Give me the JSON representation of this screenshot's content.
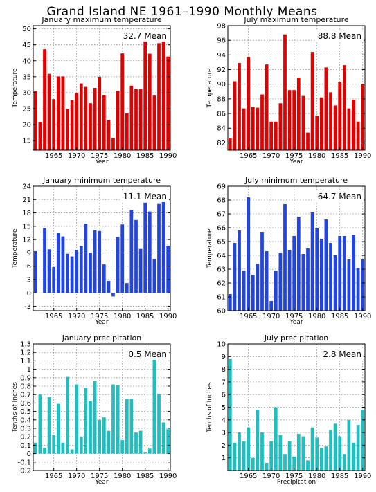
{
  "title": "Grand Island NE  1961–1990 Monthly Means",
  "chart_data": [
    {
      "type": "bar",
      "title": "January maximum temperature",
      "xlabel": "Year",
      "ylabel": "Temperature",
      "mean_label": "32.7 Mean",
      "color": "#e00000",
      "xlim": [
        1960.5,
        1990.5
      ],
      "ylim": [
        12,
        51
      ],
      "yticks": [
        15,
        20,
        25,
        30,
        35,
        40,
        45,
        50
      ],
      "xticks": [
        1965,
        1970,
        1975,
        1980,
        1985,
        1990
      ],
      "grid": true,
      "categories": [
        1961,
        1962,
        1963,
        1964,
        1965,
        1966,
        1967,
        1968,
        1969,
        1970,
        1971,
        1972,
        1973,
        1974,
        1975,
        1976,
        1977,
        1978,
        1979,
        1980,
        1981,
        1982,
        1983,
        1984,
        1985,
        1986,
        1987,
        1988,
        1989,
        1990
      ],
      "values": [
        30.5,
        20.8,
        43.6,
        35.9,
        28.0,
        35.1,
        35.1,
        25.0,
        27.7,
        29.9,
        32.9,
        31.8,
        26.7,
        31.5,
        35.0,
        29.2,
        21.5,
        15.8,
        30.6,
        42.3,
        23.5,
        32.2,
        31.1,
        31.2,
        47.0,
        42.2,
        29.1,
        45.5,
        46.6,
        41.3
      ]
    },
    {
      "type": "bar",
      "title": "July maximum temperature",
      "xlabel": "Year",
      "ylabel": "Temperature",
      "mean_label": "88.8 Mean",
      "color": "#e00000",
      "xlim": [
        1960.5,
        1990.5
      ],
      "ylim": [
        81,
        98
      ],
      "yticks": [
        82,
        84,
        86,
        88,
        90,
        92,
        94,
        96,
        98
      ],
      "xticks": [
        1965,
        1970,
        1975,
        1980,
        1985,
        1990
      ],
      "grid": true,
      "categories": [
        1961,
        1962,
        1963,
        1964,
        1965,
        1966,
        1967,
        1968,
        1969,
        1970,
        1971,
        1972,
        1973,
        1974,
        1975,
        1976,
        1977,
        1978,
        1979,
        1980,
        1981,
        1982,
        1983,
        1984,
        1985,
        1986,
        1987,
        1988,
        1989,
        1990
      ],
      "values": [
        82.6,
        90.4,
        92.9,
        86.7,
        93.7,
        86.9,
        86.8,
        88.6,
        92.7,
        84.9,
        84.9,
        87.4,
        96.8,
        89.2,
        89.2,
        90.9,
        88.4,
        83.4,
        94.4,
        85.7,
        88.2,
        92.3,
        88.9,
        87.1,
        90.3,
        92.6,
        86.7,
        87.9,
        84.9,
        90.0
      ]
    },
    {
      "type": "bar",
      "title": "January minimum temperature",
      "xlabel": "Year",
      "ylabel": "Temperature",
      "mean_label": "11.1 Mean",
      "color": "#2244e0",
      "xlim": [
        1960.5,
        1990.5
      ],
      "ylim": [
        -4,
        24
      ],
      "yticks": [
        -3,
        0,
        3,
        6,
        9,
        12,
        15,
        18,
        21,
        24
      ],
      "xticks": [
        1965,
        1970,
        1975,
        1980,
        1985,
        1990
      ],
      "grid": true,
      "categories": [
        1961,
        1962,
        1963,
        1964,
        1965,
        1966,
        1967,
        1968,
        1969,
        1970,
        1971,
        1972,
        1973,
        1974,
        1975,
        1976,
        1977,
        1978,
        1979,
        1980,
        1981,
        1982,
        1983,
        1984,
        1985,
        1986,
        1987,
        1988,
        1989,
        1990
      ],
      "values": [
        9.4,
        0.0,
        14.6,
        9.8,
        5.8,
        13.5,
        12.7,
        8.8,
        8.2,
        9.7,
        10.6,
        15.6,
        9.0,
        14.1,
        13.9,
        6.4,
        2.7,
        -0.8,
        12.6,
        15.4,
        2.2,
        18.7,
        16.4,
        9.9,
        20.3,
        18.3,
        7.6,
        20.0,
        21.1,
        10.6
      ]
    },
    {
      "type": "bar",
      "title": "July minimum temperature",
      "xlabel": "Year",
      "ylabel": "Temperature",
      "mean_label": "64.7 Mean",
      "color": "#2244e0",
      "xlim": [
        1960.5,
        1990.5
      ],
      "ylim": [
        60,
        69
      ],
      "yticks": [
        60,
        61,
        62,
        63,
        64,
        65,
        66,
        67,
        68,
        69
      ],
      "xticks": [
        1965,
        1970,
        1975,
        1980,
        1985,
        1990
      ],
      "grid": true,
      "categories": [
        1961,
        1962,
        1963,
        1964,
        1965,
        1966,
        1967,
        1968,
        1969,
        1970,
        1971,
        1972,
        1973,
        1974,
        1975,
        1976,
        1977,
        1978,
        1979,
        1980,
        1981,
        1982,
        1983,
        1984,
        1985,
        1986,
        1987,
        1988,
        1989,
        1990
      ],
      "values": [
        61.2,
        64.9,
        65.8,
        62.9,
        68.2,
        62.6,
        63.4,
        65.7,
        64.3,
        60.7,
        62.9,
        64.2,
        67.7,
        64.4,
        65.4,
        66.8,
        64.1,
        64.5,
        67.1,
        66.0,
        65.2,
        66.6,
        64.9,
        64.0,
        65.4,
        65.4,
        63.7,
        65.5,
        63.1,
        63.7
      ]
    },
    {
      "type": "bar",
      "title": "January precipitation",
      "xlabel": "Year",
      "ylabel": "Tenths of Inches",
      "mean_label": "0.5 Mean",
      "color": "#1fbfbf",
      "xlim": [
        1960.5,
        1990.5
      ],
      "ylim": [
        -0.2,
        1.3
      ],
      "yticks": [
        -0.2,
        -0.1,
        0,
        0.1,
        0.2,
        0.3,
        0.4,
        0.5,
        0.6,
        0.7,
        0.8,
        0.9,
        1,
        1.1,
        1.2,
        1.3
      ],
      "ytick_labels": [
        "-0.2",
        "-0.1",
        "0",
        "0.1",
        "0.2",
        "0.3",
        "0.4",
        "0.5",
        "0.6",
        "0.7",
        "0.8",
        "0.9",
        "1",
        "1.1",
        "1.2",
        "1.3"
      ],
      "xticks": [
        1965,
        1970,
        1975,
        1980,
        1985,
        1990
      ],
      "grid": true,
      "categories": [
        1961,
        1962,
        1963,
        1964,
        1965,
        1966,
        1967,
        1968,
        1969,
        1970,
        1971,
        1972,
        1973,
        1974,
        1975,
        1976,
        1977,
        1978,
        1979,
        1980,
        1981,
        1982,
        1983,
        1984,
        1985,
        1986,
        1987,
        1988,
        1989,
        1990
      ],
      "values": [
        0.13,
        0.7,
        0.07,
        0.67,
        0.22,
        0.59,
        0.13,
        0.91,
        0.05,
        0.82,
        0.2,
        0.78,
        0.62,
        0.86,
        0.4,
        0.43,
        0.27,
        0.82,
        0.81,
        0.16,
        0.65,
        0.65,
        0.25,
        0.27,
        0.02,
        0.06,
        1.13,
        0.71,
        0.37,
        0.29
      ]
    },
    {
      "type": "bar",
      "title": "July precipitation",
      "xlabel": "Precipitation",
      "ylabel": "Tenths of Inches",
      "mean_label": "2.8 Mean",
      "color": "#1fbfbf",
      "xlim": [
        1960.5,
        1990.5
      ],
      "ylim": [
        0,
        10
      ],
      "yticks": [
        1,
        2,
        3,
        4,
        5,
        6,
        7,
        8,
        9,
        10
      ],
      "xticks": [
        1965,
        1970,
        1975,
        1980,
        1985,
        1990
      ],
      "grid": true,
      "categories": [
        1961,
        1962,
        1963,
        1964,
        1965,
        1966,
        1967,
        1968,
        1969,
        1970,
        1971,
        1972,
        1973,
        1974,
        1975,
        1976,
        1977,
        1978,
        1979,
        1980,
        1981,
        1982,
        1983,
        1984,
        1985,
        1986,
        1987,
        1988,
        1989,
        1990
      ],
      "values": [
        8.8,
        2.2,
        3.0,
        2.3,
        3.4,
        1.0,
        4.8,
        3.0,
        0.6,
        2.3,
        5.0,
        2.8,
        1.3,
        2.3,
        1.1,
        2.9,
        2.7,
        0.8,
        3.4,
        2.6,
        1.8,
        1.9,
        3.2,
        3.7,
        2.7,
        1.3,
        4.0,
        2.2,
        3.6,
        4.8
      ]
    }
  ]
}
